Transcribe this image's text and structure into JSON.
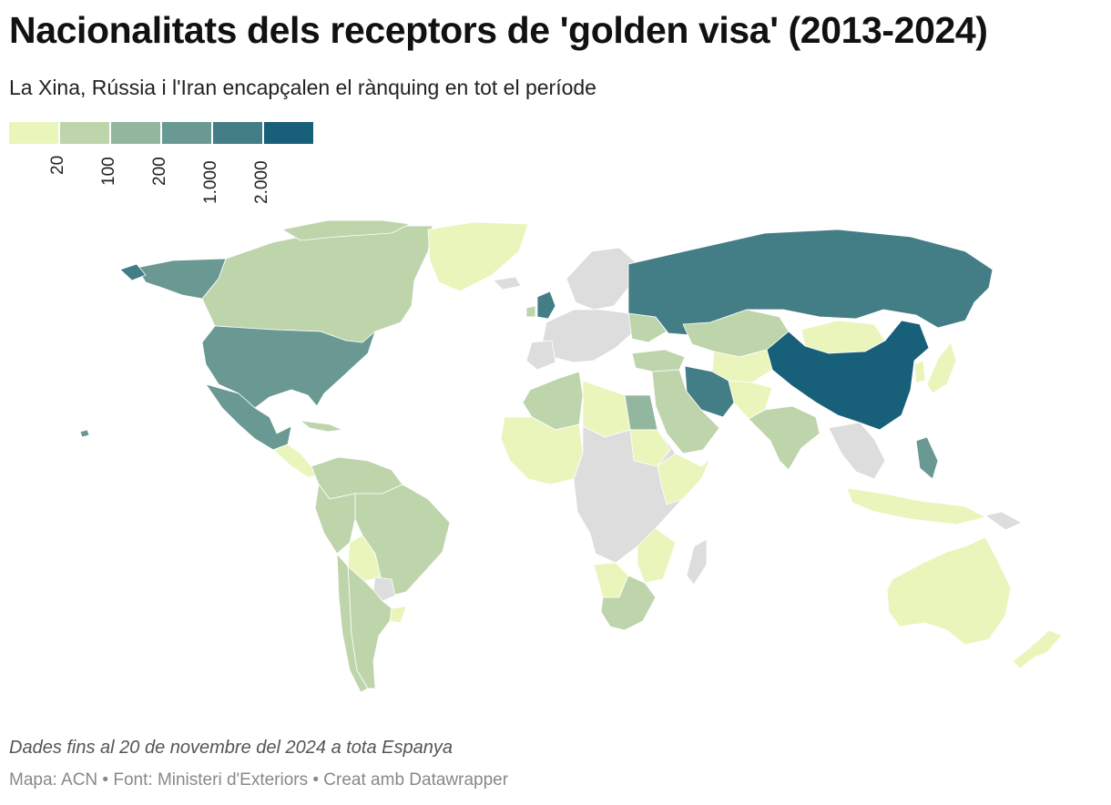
{
  "header": {
    "title": "Nacionalitats dels receptors de 'golden visa' (2013-2024)",
    "subtitle": "La Xina, Rússia i l'Iran encapçalen el rànquing en tot el període"
  },
  "legend": {
    "colors": [
      "#eaf5bc",
      "#bed5ab",
      "#93b69e",
      "#6a9994",
      "#437d86",
      "#186079"
    ],
    "ticks": [
      "20",
      "100",
      "200",
      "1.000",
      "2.000"
    ]
  },
  "map_colors": {
    "no_data": "#dddddd",
    "border": "#ffffff"
  },
  "footer": {
    "note": "Dades fins al 20 de novembre del 2024 a tota Espanya",
    "credits": "Mapa: ACN • Font: Ministeri d'Exteriors • Creat amb Datawrapper"
  }
}
